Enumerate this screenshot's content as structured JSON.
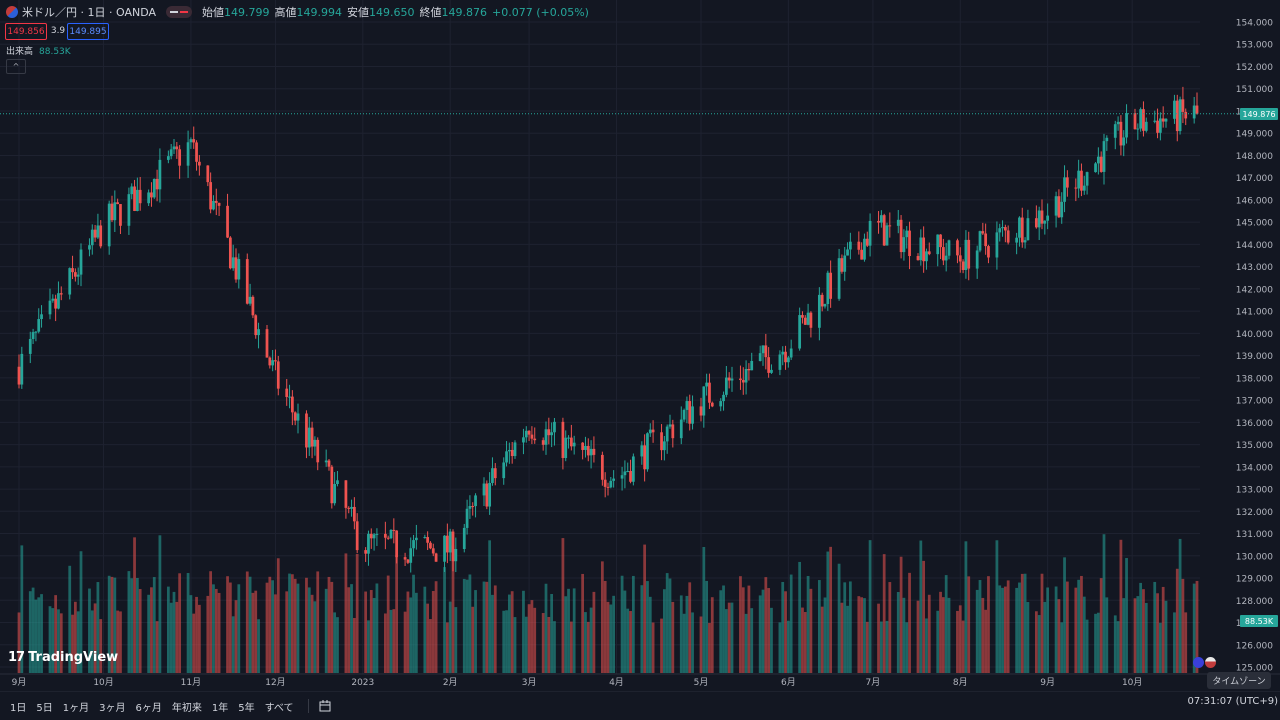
{
  "header": {
    "symbol": "米ドル／円 · 1日 · OANDA",
    "open_label": "始値",
    "open": "149.799",
    "high_label": "高値",
    "high": "149.994",
    "low_label": "安値",
    "low": "149.650",
    "close_label": "終値",
    "close": "149.876",
    "change": "+0.077 (+0.05%)",
    "sell_price": "149.856",
    "spread": "3.9",
    "buy_price": "149.895",
    "volume_label": "出来高",
    "volume_value": "88.53K",
    "collapse_glyph": "^"
  },
  "logo_text": "TradingView",
  "range_buttons": [
    "1日",
    "5日",
    "1ヶ月",
    "3ヶ月",
    "6ヶ月",
    "年初来",
    "1年",
    "5年",
    "すべて"
  ],
  "clock": "07:31:07 (UTC+9)",
  "timezone_tooltip": "タイムゾーン",
  "last_price_tag": "149.876",
  "volume_tag": "88.53K",
  "colors": {
    "up": "#26a69a",
    "down": "#ef5350",
    "background": "#131722",
    "grid": "#1e2230"
  },
  "chart_data": {
    "type": "candlestick",
    "y_axis_ticks": [
      "154.000",
      "153.000",
      "152.000",
      "151.000",
      "150.000",
      "149.000",
      "148.000",
      "147.000",
      "146.000",
      "145.000",
      "144.000",
      "143.000",
      "142.000",
      "141.000",
      "140.000",
      "139.000",
      "138.000",
      "137.000",
      "136.000",
      "135.000",
      "134.000",
      "133.000",
      "132.000",
      "131.000",
      "130.000",
      "129.000",
      "128.000",
      "127.000",
      "126.000",
      "125.000"
    ],
    "ylim": [
      125,
      154
    ],
    "x_axis_ticks": [
      "9月",
      "10月",
      "11月",
      "12月",
      "2023",
      "2月",
      "3月",
      "4月",
      "5月",
      "6月",
      "7月",
      "8月",
      "9月",
      "10月"
    ],
    "x": [
      "2022-09-01",
      "2022-10-01",
      "2022-11-01",
      "2022-12-01",
      "2023-01-01",
      "2023-02-01",
      "2023-03-01",
      "2023-04-01",
      "2023-05-01",
      "2023-06-01",
      "2023-07-01",
      "2023-08-01",
      "2023-09-01",
      "2023-10-01",
      "2023-10-24"
    ],
    "close_path": [
      138.5,
      144.8,
      148.5,
      138.0,
      130.5,
      130.3,
      136.0,
      133.5,
      137.0,
      139.5,
      144.8,
      143.4,
      145.5,
      149.4,
      149.876
    ],
    "last_close": 149.876,
    "volume_series": "出来高",
    "last_volume": "88.53K"
  }
}
